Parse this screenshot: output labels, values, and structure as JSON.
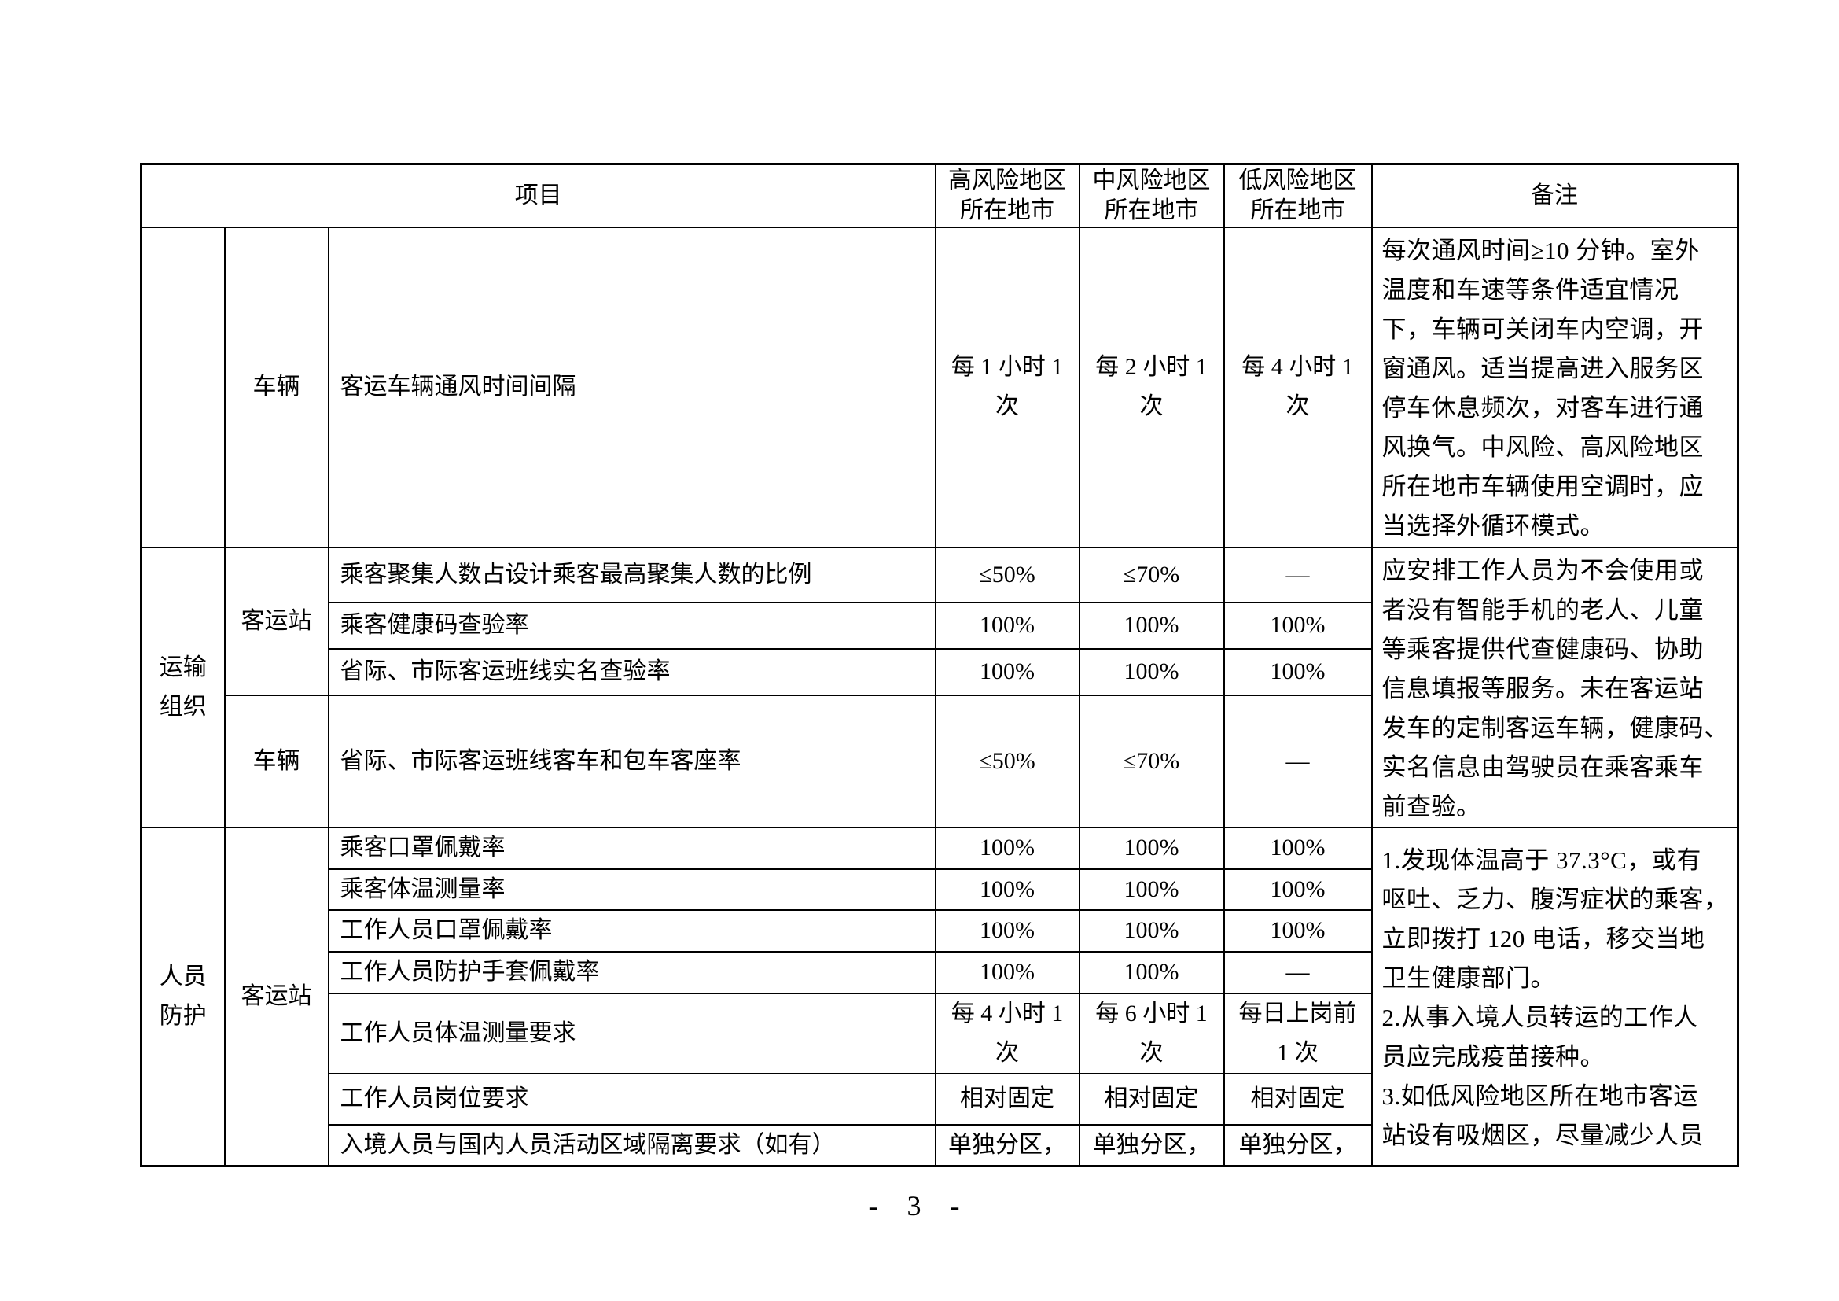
{
  "header": {
    "item": "项目",
    "high": [
      "高风险地区",
      "所在地市"
    ],
    "mid": [
      "中风险地区",
      "所在地市"
    ],
    "low": [
      "低风险地区",
      "所在地市"
    ],
    "remark": "备注"
  },
  "section_vehicle_ventilation": {
    "sub": "车辆",
    "item": "客运车辆通风时间间隔",
    "high": [
      "每 1 小时 1",
      "次"
    ],
    "mid": [
      "每 2 小时 1",
      "次"
    ],
    "low": [
      "每 4 小时 1",
      "次"
    ],
    "remark": [
      "每次通风时间≥10 分钟。室外",
      "温度和车速等条件适宜情况",
      "下，车辆可关闭车内空调，开",
      "窗通风。适当提高进入服务区",
      "停车休息频次，对客车进行通",
      "风换气。中风险、高风险地区",
      "所在地市车辆使用空调时，应",
      "当选择外循环模式。"
    ]
  },
  "section_transport": {
    "category": [
      "运输",
      "组织"
    ],
    "station": "客运站",
    "vehicle": "车辆",
    "rows": [
      {
        "item": "乘客聚集人数占设计乘客最高聚集人数的比例",
        "high": "≤50%",
        "mid": "≤70%",
        "low": "—"
      },
      {
        "item": "乘客健康码查验率",
        "high": "100%",
        "mid": "100%",
        "low": "100%"
      },
      {
        "item": "省际、市际客运班线实名查验率",
        "high": "100%",
        "mid": "100%",
        "low": "100%"
      },
      {
        "item": "省际、市际客运班线客车和包车客座率",
        "high": "≤50%",
        "mid": "≤70%",
        "low": "—"
      }
    ],
    "remark": [
      "应安排工作人员为不会使用或",
      "者没有智能手机的老人、儿童",
      "等乘客提供代查健康码、协助",
      "信息填报等服务。未在客运站",
      "发车的定制客运车辆，健康码、",
      "实名信息由驾驶员在乘客乘车",
      "前查验。"
    ]
  },
  "section_protection": {
    "category": [
      "人员",
      "防护"
    ],
    "station": "客运站",
    "rows": [
      {
        "item": "乘客口罩佩戴率",
        "high": [
          "100%"
        ],
        "mid": [
          "100%"
        ],
        "low": [
          "100%"
        ]
      },
      {
        "item": "乘客体温测量率",
        "high": [
          "100%"
        ],
        "mid": [
          "100%"
        ],
        "low": [
          "100%"
        ]
      },
      {
        "item": "工作人员口罩佩戴率",
        "high": [
          "100%"
        ],
        "mid": [
          "100%"
        ],
        "low": [
          "100%"
        ]
      },
      {
        "item": "工作人员防护手套佩戴率",
        "high": [
          "100%"
        ],
        "mid": [
          "100%"
        ],
        "low": [
          "—"
        ]
      },
      {
        "item": "工作人员体温测量要求",
        "high": [
          "每 4 小时 1",
          "次"
        ],
        "mid": [
          "每 6 小时 1",
          "次"
        ],
        "low": [
          "每日上岗前",
          "1 次"
        ]
      },
      {
        "item": "工作人员岗位要求",
        "high": [
          "相对固定"
        ],
        "mid": [
          "相对固定"
        ],
        "low": [
          "相对固定"
        ]
      },
      {
        "item": "入境人员与国内人员活动区域隔离要求（如有）",
        "high": [
          "单独分区，"
        ],
        "mid": [
          "单独分区，"
        ],
        "low": [
          "单独分区，"
        ]
      }
    ],
    "remark": [
      "1.发现体温高于 37.3°C，或有",
      "呕吐、乏力、腹泻症状的乘客，",
      "立即拨打 120 电话，移交当地",
      "卫生健康部门。",
      "2.从事入境人员转运的工作人",
      "员应完成疫苗接种。",
      "3.如低风险地区所在地市客运",
      "站设有吸烟区，尽量减少人员"
    ]
  },
  "page_number": "- 3 -"
}
